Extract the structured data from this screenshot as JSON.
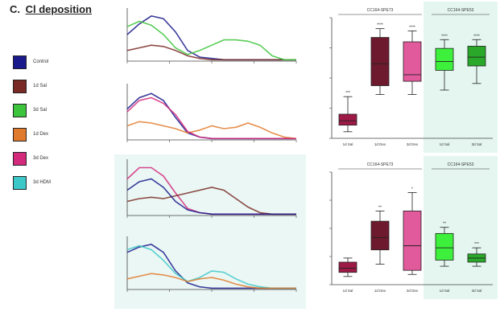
{
  "panel": {
    "letter": "C.",
    "title": "Cl deposition"
  },
  "legend": [
    {
      "label": "Control",
      "color": "#1a1a8c"
    },
    {
      "label": "1d Sal",
      "color": "#7a2a24"
    },
    {
      "label": "3d Sal",
      "color": "#3cc43c"
    },
    {
      "label": "1d Dex",
      "color": "#e07a2c"
    },
    {
      "label": "3d Dex",
      "color": "#d42a7c"
    },
    {
      "label": "3d HDM",
      "color": "#3cc8c8"
    }
  ],
  "chart_data": [
    {
      "type": "line",
      "x": [
        0,
        5,
        10,
        15,
        20,
        25,
        30,
        35,
        40,
        45,
        50,
        55,
        60,
        65,
        70
      ],
      "series": [
        {
          "color": "#1a1a8c",
          "values": [
            20,
            28,
            34,
            32,
            22,
            8,
            3,
            2,
            1,
            1,
            1,
            1,
            1,
            1,
            1
          ]
        },
        {
          "color": "#7a2a24",
          "values": [
            8,
            10,
            12,
            11,
            8,
            4,
            2,
            1,
            1,
            1,
            1,
            1,
            1,
            1,
            1
          ]
        },
        {
          "color": "#3cc43c",
          "values": [
            26,
            30,
            27,
            20,
            10,
            5,
            8,
            12,
            16,
            16,
            15,
            12,
            4,
            1,
            1
          ]
        }
      ],
      "ylim": [
        0,
        40
      ],
      "xlim": [
        0,
        70
      ]
    },
    {
      "type": "line",
      "x": [
        0,
        5,
        10,
        15,
        20,
        25,
        30,
        35,
        40,
        45,
        50,
        55,
        60,
        65,
        70
      ],
      "series": [
        {
          "color": "#1a1a8c",
          "values": [
            22,
            30,
            33,
            28,
            16,
            5,
            2,
            1,
            1,
            1,
            1,
            1,
            1,
            1,
            1
          ]
        },
        {
          "color": "#e07a2c",
          "values": [
            10,
            13,
            12,
            10,
            8,
            5,
            7,
            10,
            8,
            9,
            12,
            9,
            5,
            2,
            1
          ]
        },
        {
          "color": "#d42a7c",
          "values": [
            20,
            28,
            30,
            26,
            18,
            6,
            2,
            1,
            1,
            1,
            1,
            1,
            1,
            1,
            1
          ]
        }
      ],
      "ylim": [
        0,
        40
      ],
      "xlim": [
        0,
        70
      ]
    },
    {
      "type": "line",
      "x": [
        0,
        5,
        10,
        15,
        20,
        25,
        30,
        35,
        40,
        45,
        50,
        55,
        60,
        65,
        70
      ],
      "series": [
        {
          "color": "#d42a7c",
          "values": [
            26,
            34,
            34,
            28,
            16,
            5,
            2,
            1,
            1,
            1,
            1,
            1,
            1,
            1,
            1
          ]
        },
        {
          "color": "#7a2a24",
          "values": [
            10,
            12,
            13,
            12,
            14,
            16,
            18,
            20,
            18,
            12,
            6,
            2,
            1,
            1,
            1
          ]
        },
        {
          "color": "#1a1a8c",
          "values": [
            18,
            24,
            26,
            20,
            10,
            4,
            2,
            1,
            1,
            1,
            1,
            1,
            1,
            1,
            1
          ]
        }
      ],
      "ylim": [
        0,
        40
      ],
      "xlim": [
        0,
        70
      ]
    },
    {
      "type": "line",
      "x": [
        0,
        5,
        10,
        15,
        20,
        25,
        30,
        35,
        40,
        45,
        50,
        55,
        60,
        65,
        70
      ],
      "series": [
        {
          "color": "#1a1a8c",
          "values": [
            28,
            32,
            34,
            28,
            14,
            5,
            2,
            1,
            1,
            1,
            1,
            1,
            1,
            1,
            1
          ]
        },
        {
          "color": "#3cc8c8",
          "values": [
            30,
            33,
            30,
            22,
            12,
            6,
            9,
            14,
            13,
            8,
            4,
            2,
            1,
            1,
            1
          ]
        },
        {
          "color": "#e07a2c",
          "values": [
            8,
            10,
            12,
            11,
            9,
            6,
            8,
            9,
            7,
            4,
            2,
            1,
            1,
            1,
            1
          ]
        }
      ],
      "ylim": [
        0,
        40
      ],
      "xlim": [
        0,
        70
      ]
    },
    {
      "type": "box",
      "group_labels": [
        "CC164-SPE73",
        "CC164-SPE53"
      ],
      "shaded_group": 1,
      "boxes": [
        {
          "label": "1d Sal",
          "color": "#9e1a46",
          "min": 6,
          "q1": 12,
          "median": 16,
          "q3": 22,
          "max": 38,
          "sig": "***"
        },
        {
          "label": "1d Dex",
          "color": "#6e1a2e",
          "min": 40,
          "q1": 48,
          "median": 68,
          "q3": 92,
          "max": 100,
          "sig": "****"
        },
        {
          "label": "3d Dex",
          "color": "#e05a9c",
          "min": 40,
          "q1": 52,
          "median": 58,
          "q3": 88,
          "max": 98,
          "sig": "****"
        },
        {
          "label": "1d Sal",
          "color": "#3cf03c",
          "min": 44,
          "q1": 62,
          "median": 70,
          "q3": 82,
          "max": 90,
          "sig": "****"
        },
        {
          "label": "3d Sal",
          "color": "#2aa82a",
          "min": 50,
          "q1": 66,
          "median": 74,
          "q3": 84,
          "max": 90,
          "sig": "****"
        }
      ],
      "ylim": [
        0,
        110
      ]
    },
    {
      "type": "box",
      "group_labels": [
        "CC164-SPE73",
        "CC164-SPE53"
      ],
      "shaded_group": 1,
      "boxes": [
        {
          "label": "1d Sal",
          "color": "#9e1a46",
          "min": 8,
          "q1": 12,
          "median": 16,
          "q3": 22,
          "max": 26,
          "sig": ""
        },
        {
          "label": "1d Dex",
          "color": "#6e1a2e",
          "min": 20,
          "q1": 34,
          "median": 46,
          "q3": 62,
          "max": 72,
          "sig": "**"
        },
        {
          "label": "3d Dex",
          "color": "#e05a9c",
          "min": 10,
          "q1": 14,
          "median": 38,
          "q3": 72,
          "max": 90,
          "sig": "*"
        },
        {
          "label": "1d Sal",
          "color": "#3cf03c",
          "min": 18,
          "q1": 24,
          "median": 36,
          "q3": 50,
          "max": 56,
          "sig": "**"
        },
        {
          "label": "3d Sal",
          "color": "#2aa82a",
          "min": 18,
          "q1": 22,
          "median": 26,
          "q3": 30,
          "max": 36,
          "sig": "***"
        }
      ],
      "ylim": [
        0,
        110
      ]
    }
  ]
}
